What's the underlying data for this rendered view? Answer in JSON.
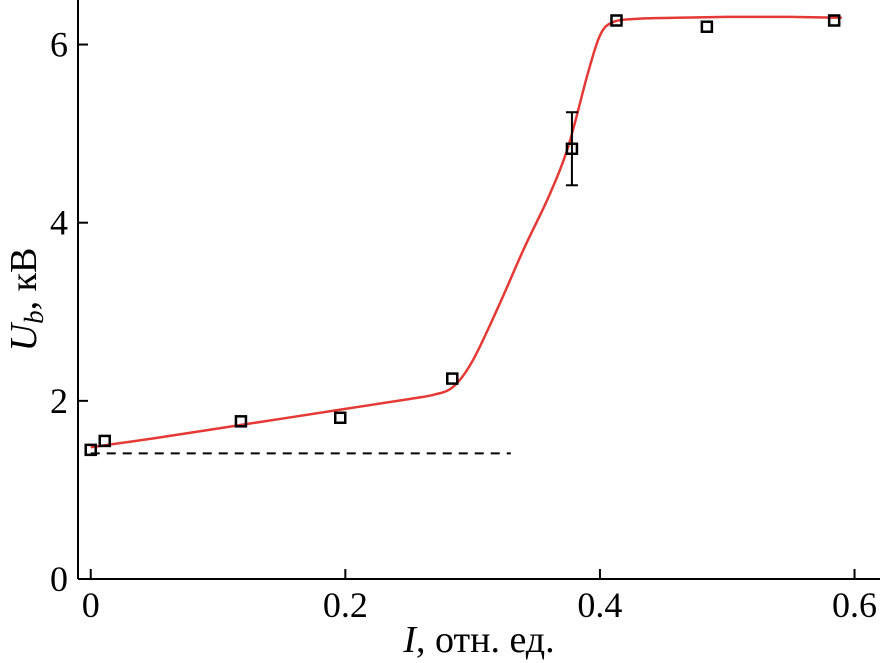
{
  "chart_data": {
    "type": "scatter",
    "xlabel_symbol": "I",
    "xlabel_rest": ", отн. ед.",
    "ylabel_symbol": "U",
    "ylabel_sub": "b",
    "ylabel_rest": ", кВ",
    "xlim": [
      -0.01,
      0.62
    ],
    "ylim": [
      0,
      6.5
    ],
    "x_ticks": [
      0,
      0.2,
      0.4,
      0.6
    ],
    "x_tick_labels": [
      "0",
      "0.2",
      "0.4",
      "0.6"
    ],
    "y_ticks": [
      0,
      2,
      4,
      6
    ],
    "y_tick_labels": [
      "0",
      "2",
      "4",
      "6"
    ],
    "grid": false,
    "series": [
      {
        "type": "scatter",
        "marker": "open-square",
        "color": "#000000",
        "x": [
          0.0,
          0.011,
          0.118,
          0.196,
          0.284,
          0.378,
          0.413,
          0.484,
          0.584
        ],
        "y": [
          1.45,
          1.55,
          1.77,
          1.81,
          2.25,
          4.83,
          6.27,
          6.2,
          6.27
        ],
        "yerr": [
          0,
          0,
          0,
          0,
          0,
          0.41,
          0,
          0,
          0
        ]
      },
      {
        "type": "line",
        "color": "#e53935",
        "x": [
          0.0,
          0.05,
          0.1,
          0.15,
          0.2,
          0.25,
          0.27,
          0.285,
          0.3,
          0.32,
          0.34,
          0.36,
          0.375,
          0.39,
          0.4,
          0.41,
          0.43,
          0.46,
          0.5,
          0.55,
          0.59
        ],
        "y": [
          1.48,
          1.58,
          1.69,
          1.8,
          1.91,
          2.02,
          2.07,
          2.16,
          2.45,
          3.05,
          3.7,
          4.3,
          4.85,
          5.65,
          6.1,
          6.25,
          6.29,
          6.3,
          6.31,
          6.31,
          6.3
        ]
      },
      {
        "type": "line",
        "style": "dashed",
        "color": "#000000",
        "x": [
          0.0,
          0.33
        ],
        "y": [
          1.41,
          1.41
        ]
      }
    ]
  }
}
